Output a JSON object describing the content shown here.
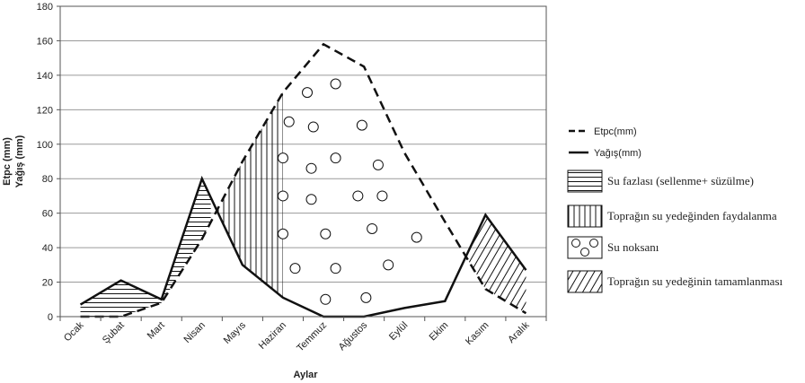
{
  "chart_data": {
    "type": "line",
    "categories": [
      "Ocak",
      "Şubat",
      "Mart",
      "Nisan",
      "Mayıs",
      "Haziran",
      "Temmuz",
      "Ağustos",
      "Eylül",
      "Ekim",
      "Kasım",
      "Aralık"
    ],
    "xlabel": "Aylar",
    "ylabel_line1": "Etpc (mm)",
    "ylabel_line2": "Yağış (mm)",
    "ylim": [
      0,
      180
    ],
    "yticks": [
      0,
      20,
      40,
      60,
      80,
      100,
      120,
      140,
      160,
      180
    ],
    "grid": true,
    "series": [
      {
        "name": "Etpc(mm)",
        "style": "dashed",
        "values": [
          0,
          0,
          8,
          45,
          90,
          130,
          158,
          145,
          95,
          55,
          16,
          2
        ]
      },
      {
        "name": "Yağış(mm)",
        "style": "solid",
        "values": [
          7,
          21,
          10,
          80,
          30,
          11,
          0,
          0,
          5,
          9,
          59,
          27
        ]
      }
    ],
    "legend_position": "right",
    "area_legend": [
      {
        "label": "Su fazlası (sellenme+ süzülme)",
        "pattern": "horizontal"
      },
      {
        "label": "Toprağın su yedeğinden faydalanma",
        "pattern": "vertical"
      },
      {
        "label": "Su noksanı",
        "pattern": "circles"
      },
      {
        "label": "Toprağın su yedeğinin tamamlanması",
        "pattern": "diagonal"
      }
    ]
  }
}
